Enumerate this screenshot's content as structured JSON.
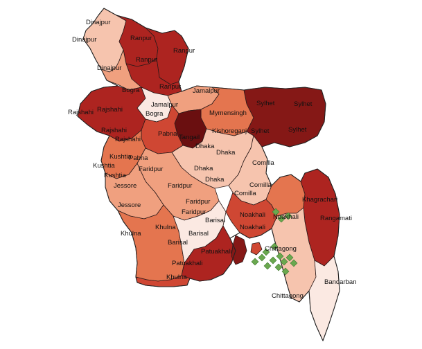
{
  "palette": {
    "c1": "#fbe9e2",
    "c2": "#f6c4ae",
    "c3": "#f0a07f",
    "c4": "#e4754f",
    "c5": "#cf4733",
    "c6": "#ad2420",
    "c7": "#851816",
    "c8": "#6a0f10",
    "marker": "#6aa84f"
  },
  "labels": {
    "dinajpur_a": "Dinajpur",
    "dinajpur_b": "Dinajpur",
    "dinajpur_c": "Dinajpur",
    "ranpur_a": "Ranpur",
    "ranpur_b": "Ranpur",
    "ranpur_c": "Ranpur",
    "ranpur_d": "Ranpur",
    "bogra_a": "Bogra",
    "bogra_b": "Bogra",
    "jamalpur_a": "Jamalpur",
    "jamalpur_b": "Jamalpur",
    "rajshahi_a": "Rajshahi",
    "rajshahi_b": "Rajshahi",
    "rajshahi_c": "Rajshahi",
    "rajshahi_d": "Rajshahi",
    "mymensingh": "Mymensingh",
    "kishoreganj": "Kishoreganj",
    "sylhet_a": "Sylhet",
    "sylhet_b": "Sylhet",
    "sylhet_c": "Sylhet",
    "sylhet_d": "Sylhet",
    "pabna_a": "Pabna",
    "pabna_b": "Pabna",
    "tangail": "Tangail",
    "dhaka_a": "Dhaka",
    "dhaka_b": "Dhaka",
    "dhaka_c": "Dhaka",
    "dhaka_d": "Dhaka",
    "kushtia_a": "Kushtia",
    "kushtia_b": "Kushtia",
    "kushtia_c": "Kushtia",
    "faridpur_a": "Faridpur",
    "faridpur_b": "Faridpur",
    "faridpur_c": "Faridpur",
    "faridpur_d": "Faridpur",
    "comilla_a": "Comilla",
    "comilla_b": "Comilla",
    "comilla_c": "Comilla",
    "jessore_a": "Jessore",
    "jessore_b": "Jessore",
    "khagrachari": "Khagrachari",
    "rangamati": "Rangamati",
    "noakhali_a": "Noakhali",
    "noakhali_b": "Noakhali",
    "noakhali_c": "Noakhali",
    "barisal_a": "Barisal",
    "barisal_b": "Barisal",
    "barisal_c": "Barisal",
    "khulna_a": "Khulna",
    "khulna_b": "Khulna",
    "khulna_c": "Khulna",
    "chittagong_a": "Chittagong",
    "chittagong_b": "Chittagong",
    "patuakhali_a": "Patuakhali",
    "patuakhali_b": "Patuakhali",
    "bandarban": "Bandarban"
  }
}
